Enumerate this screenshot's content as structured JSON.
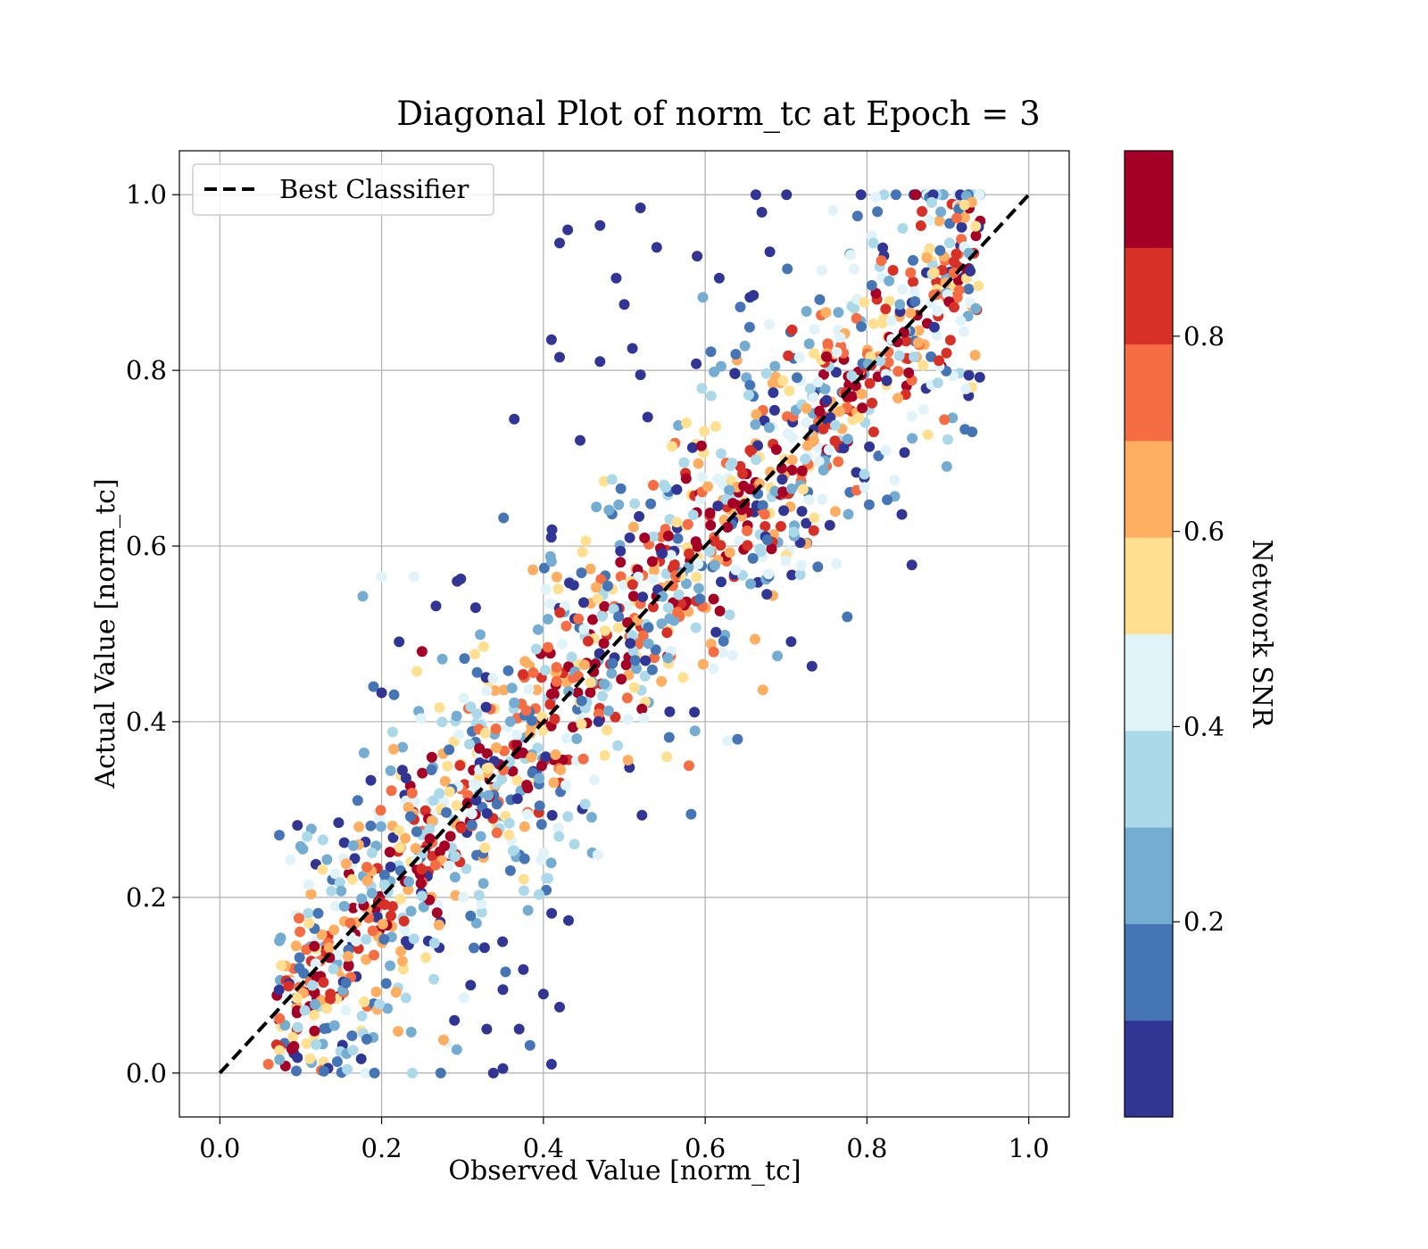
{
  "chart_data": {
    "type": "scatter",
    "title": "Diagonal Plot of norm_tc at Epoch = 3",
    "xlabel": "Observed Value [norm_tc]",
    "ylabel": "Actual Value [norm_tc]",
    "xlim": [
      -0.05,
      1.05
    ],
    "ylim": [
      -0.05,
      1.05
    ],
    "xticks": [
      "0.0",
      "0.2",
      "0.4",
      "0.6",
      "0.8",
      "1.0"
    ],
    "yticks": [
      "0.0",
      "0.2",
      "0.4",
      "0.6",
      "0.8",
      "1.0"
    ],
    "grid": true,
    "legend": {
      "position": "upper-left",
      "entries": [
        {
          "label": "Best Classifier",
          "style": "dashed",
          "color": "#000000"
        }
      ]
    },
    "reference_line": {
      "x": [
        0,
        1
      ],
      "y": [
        0,
        1
      ]
    },
    "colorbar": {
      "label": "Network SNR",
      "range": [
        0.0,
        0.99
      ],
      "ticks": [
        "0.2",
        "0.4",
        "0.6",
        "0.8"
      ],
      "colors": [
        "#313695",
        "#4575b4",
        "#74add1",
        "#abd9e9",
        "#e0f3f8",
        "#fee090",
        "#fdae61",
        "#f46d43",
        "#d73027",
        "#a50026"
      ]
    },
    "point_count_shown": 1500,
    "highlight_points": [
      {
        "x": 0.52,
        "y": 0.985,
        "snr": 0.02
      },
      {
        "x": 0.43,
        "y": 0.96,
        "snr": 0.03
      },
      {
        "x": 0.47,
        "y": 0.965,
        "snr": 0.02
      },
      {
        "x": 0.42,
        "y": 0.945,
        "snr": 0.03
      },
      {
        "x": 0.54,
        "y": 0.94,
        "snr": 0.04
      },
      {
        "x": 0.49,
        "y": 0.905,
        "snr": 0.03
      },
      {
        "x": 0.5,
        "y": 0.875,
        "snr": 0.05
      },
      {
        "x": 0.41,
        "y": 0.835,
        "snr": 0.04
      },
      {
        "x": 0.42,
        "y": 0.815,
        "snr": 0.02
      },
      {
        "x": 0.47,
        "y": 0.81,
        "snr": 0.03
      },
      {
        "x": 0.51,
        "y": 0.825,
        "snr": 0.04
      },
      {
        "x": 0.52,
        "y": 0.795,
        "snr": 0.05
      },
      {
        "x": 0.59,
        "y": 0.93,
        "snr": 0.04
      },
      {
        "x": 0.67,
        "y": 0.98,
        "snr": 0.03
      },
      {
        "x": 0.68,
        "y": 0.935,
        "snr": 0.05
      },
      {
        "x": 0.35,
        "y": 0.005,
        "snr": 0.03
      },
      {
        "x": 0.41,
        "y": 0.01,
        "snr": 0.02
      },
      {
        "x": 0.42,
        "y": 0.075,
        "snr": 0.03
      },
      {
        "x": 0.4,
        "y": 0.09,
        "snr": 0.04
      },
      {
        "x": 0.31,
        "y": 0.1,
        "snr": 0.03
      },
      {
        "x": 0.33,
        "y": 0.05,
        "snr": 0.03
      },
      {
        "x": 0.29,
        "y": 0.06,
        "snr": 0.04
      },
      {
        "x": 0.37,
        "y": 0.05,
        "snr": 0.02
      },
      {
        "x": 0.35,
        "y": 0.095,
        "snr": 0.03
      },
      {
        "x": 0.19,
        "y": 0.44,
        "snr": 0.12
      },
      {
        "x": 0.64,
        "y": 0.38,
        "snr": 0.16
      },
      {
        "x": 0.93,
        "y": 0.73,
        "snr": 0.16
      },
      {
        "x": 0.2,
        "y": 0.565,
        "snr": 0.45
      },
      {
        "x": 0.24,
        "y": 0.565,
        "snr": 0.45
      },
      {
        "x": 0.86,
        "y": 1.0,
        "snr": 0.95
      },
      {
        "x": 0.94,
        "y": 0.97,
        "snr": 0.95
      },
      {
        "x": 0.06,
        "y": 0.01,
        "snr": 0.7
      },
      {
        "x": 0.25,
        "y": 0.48,
        "snr": 0.97
      },
      {
        "x": 0.58,
        "y": 0.35,
        "snr": 0.75
      }
    ]
  }
}
